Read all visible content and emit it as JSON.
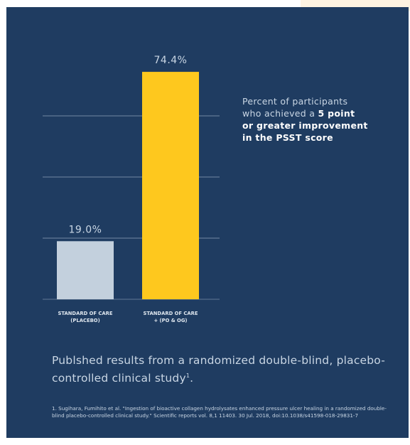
{
  "chart_data": {
    "type": "bar",
    "categories": [
      "STANDARD OF CARE (PLACEBO)",
      "STANDARD OF CARE + (PO & OG)"
    ],
    "category_lines": [
      [
        "STANDARD OF CARE",
        "(PLACEBO)"
      ],
      [
        "STANDARD OF CARE",
        "+ (PO & OG)"
      ]
    ],
    "values": [
      19.0,
      74.4
    ],
    "data_labels": [
      "19.0%",
      "74.4%"
    ],
    "bar_colors": [
      "#c3d0dd",
      "#fec81e"
    ],
    "ylim": [
      0,
      80
    ],
    "gridlines": [
      20,
      40,
      60
    ],
    "grid": true,
    "legend": "none"
  },
  "description": {
    "line1": "Percent of participants",
    "line2_prefix": "who achieved a ",
    "line2_bold": "5 point",
    "line3_bold": "or greater improvement",
    "line4_bold": "in the PSST score"
  },
  "published": {
    "text": "Publshed results from a randomized double-blind, placebo-controlled clinical study",
    "footnote_mark": "1",
    "end": "."
  },
  "citation": {
    "text": "1. Sugihara, Fumihito et al. \"Ingestion of bioactive collagen hydrolysates enhanced pressure ulcer healing in a randomized double-blind placebo-controlled clinical study.\" Scientific reports vol. 8,1 11403. 30 Jul. 2018, doi:10.1038/s41598-018-29831-7"
  },
  "colors": {
    "background": "#1f3c61",
    "text": "#c9d6e4",
    "gridline": "#8fa3b8"
  }
}
